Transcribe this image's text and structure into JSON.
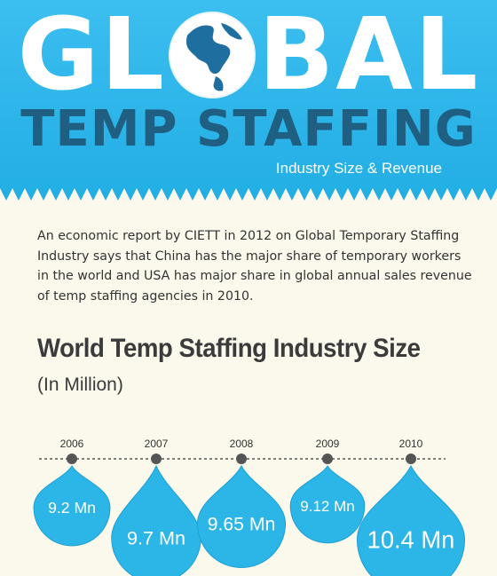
{
  "header": {
    "title_main_left": "GL",
    "title_main_right": "BAL",
    "title_secondary": "TEMP STAFFING",
    "subtitle": "Industry Size & Revenue",
    "colors": {
      "banner": "#2bb5e8",
      "banner_light": "#4fc4ee",
      "title_dark": "#1f5f82",
      "globe_land": "#1e6fa0"
    }
  },
  "intro": {
    "text": "An economic report by CIETT in 2012 on Global Temporary Staffing Industry says that China has the major share of temporary workers in the world and USA has major share in global annual sales revenue of temp staffing agencies in 2010."
  },
  "section": {
    "title": "World Temp Staffing Industry Size",
    "unit": "(In Million)"
  },
  "chart_data": {
    "type": "bubble",
    "title": "World Temp Staffing Industry Size",
    "unit": "(In Million)",
    "categories": [
      "2006",
      "2007",
      "2008",
      "2009",
      "2010"
    ],
    "values": [
      9.2,
      9.7,
      9.65,
      9.12,
      10.4
    ],
    "labels": [
      "9.2 Mn",
      "9.7 Mn",
      "9.65 Mn",
      "9.12 Mn",
      "10.4 Mn"
    ],
    "colors": {
      "drop": "#2cb6e8",
      "drop_edge": "#1d9fd4",
      "timeline": "#555555",
      "dot": "#555555"
    }
  }
}
